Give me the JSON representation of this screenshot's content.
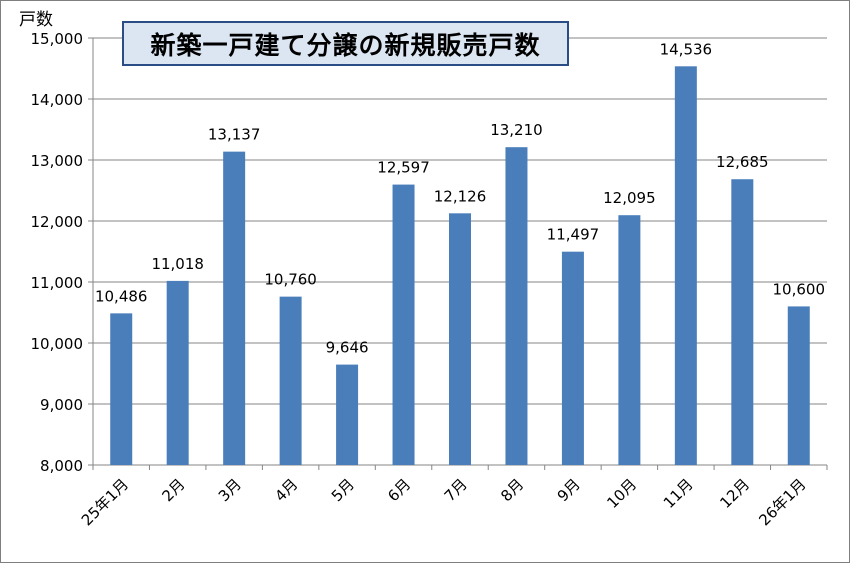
{
  "chart_data": {
    "type": "bar",
    "title": "新築一戸建て分譲の新規販売戸数",
    "ylabel": "戸数",
    "xlabel": "",
    "categories": [
      "25年1月",
      "2月",
      "3月",
      "4月",
      "5月",
      "6月",
      "7月",
      "8月",
      "9月",
      "10月",
      "11月",
      "12月",
      "26年1月"
    ],
    "values": [
      10486,
      11018,
      13137,
      10760,
      9646,
      12597,
      12126,
      13210,
      11497,
      12095,
      14536,
      12685,
      10600
    ],
    "value_labels": [
      "10,486",
      "11,018",
      "13,137",
      "10,760",
      "9,646",
      "12,597",
      "12,126",
      "13,210",
      "11,497",
      "12,095",
      "14,536",
      "12,685",
      "10,600"
    ],
    "ylim": [
      8000,
      15000
    ],
    "yticks": [
      8000,
      9000,
      10000,
      11000,
      12000,
      13000,
      14000,
      15000
    ],
    "ytick_labels": [
      "8,000",
      "9,000",
      "10,000",
      "11,000",
      "12,000",
      "13,000",
      "14,000",
      "15,000"
    ],
    "grid": true,
    "legend": "none",
    "bar_color": "#4a7ebb",
    "title_box_color": "#dce6f2",
    "title_border_color": "#2a4d86"
  }
}
